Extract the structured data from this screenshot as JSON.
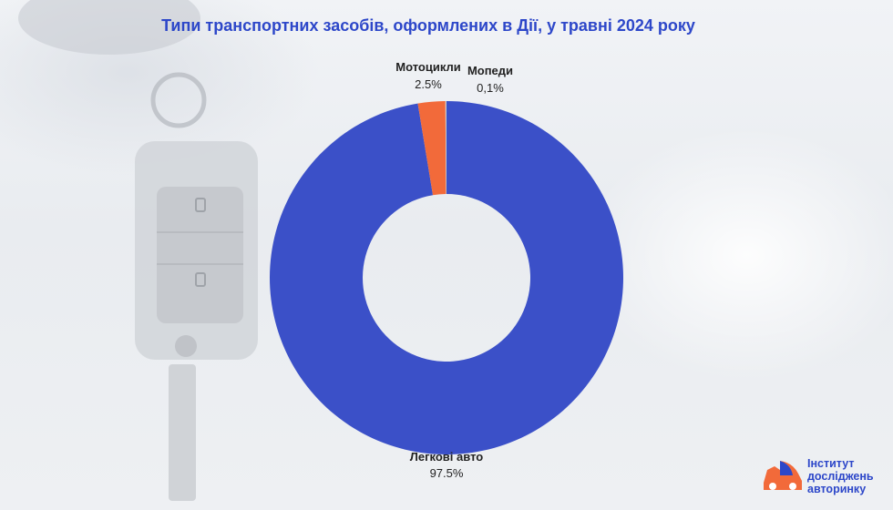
{
  "title": "Типи транспортних засобів, оформлених в Дії, у травні 2024 року",
  "logo": {
    "line1": "Інститут",
    "line2": "досліджень",
    "line3": "авторинку"
  },
  "colors": {
    "accent_blue": "#3b50c8",
    "accent_orange": "#f26a3a",
    "title_blue": "#2d47c9"
  },
  "chart_data": {
    "type": "pie",
    "subtype": "donut",
    "title": "Типи транспортних засобів, оформлених в Дії, у травні 2024 року",
    "categories": [
      "Легкові авто",
      "Мотоцикли",
      "Мопеди"
    ],
    "values": [
      97.5,
      2.5,
      0.1
    ],
    "value_labels": [
      "97.5%",
      "2.5%",
      "0,1%"
    ],
    "colors": [
      "#3b50c8",
      "#f26a3a",
      "#c9c9c9"
    ]
  }
}
